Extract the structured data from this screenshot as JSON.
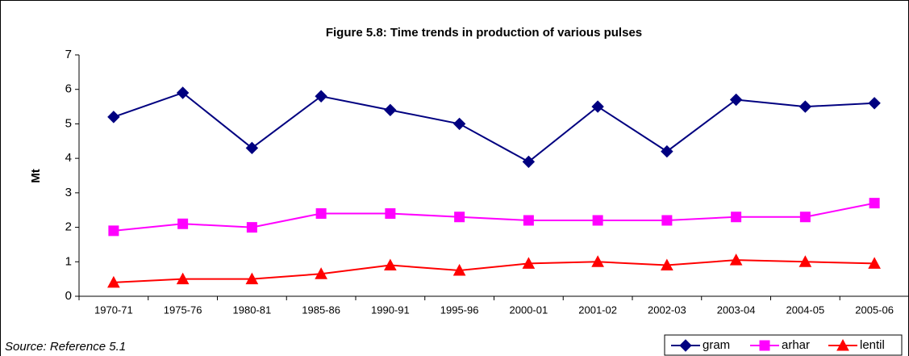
{
  "chart_data": {
    "type": "line",
    "title": "Figure 5.8: Time trends in production of various pulses",
    "y_label": "Mt",
    "source": "Source: Reference 5.1",
    "categories": [
      "1970-71",
      "1975-76",
      "1980-81",
      "1985-86",
      "1990-91",
      "1995-96",
      "2000-01",
      "2001-02",
      "2002-03",
      "2003-04",
      "2004-05",
      "2005-06"
    ],
    "series": [
      {
        "name": "gram",
        "color": "#000080",
        "marker": "diamond",
        "values": [
          5.2,
          5.9,
          4.3,
          5.8,
          5.4,
          5.0,
          3.9,
          5.5,
          4.2,
          5.7,
          5.5,
          5.6
        ]
      },
      {
        "name": "arhar",
        "color": "#ff00ff",
        "marker": "square",
        "values": [
          1.9,
          2.1,
          2.0,
          2.4,
          2.4,
          2.3,
          2.2,
          2.2,
          2.2,
          2.3,
          2.3,
          2.7
        ]
      },
      {
        "name": "lentil",
        "color": "#ff0000",
        "marker": "triangle",
        "values": [
          0.4,
          0.5,
          0.5,
          0.65,
          0.9,
          0.75,
          0.95,
          1.0,
          0.9,
          1.05,
          1.0,
          0.95
        ]
      }
    ],
    "ylim": [
      0,
      7
    ],
    "yticks": [
      0,
      1,
      2,
      3,
      4,
      5,
      6,
      7
    ],
    "grid": false,
    "legend": "bottom-right"
  }
}
